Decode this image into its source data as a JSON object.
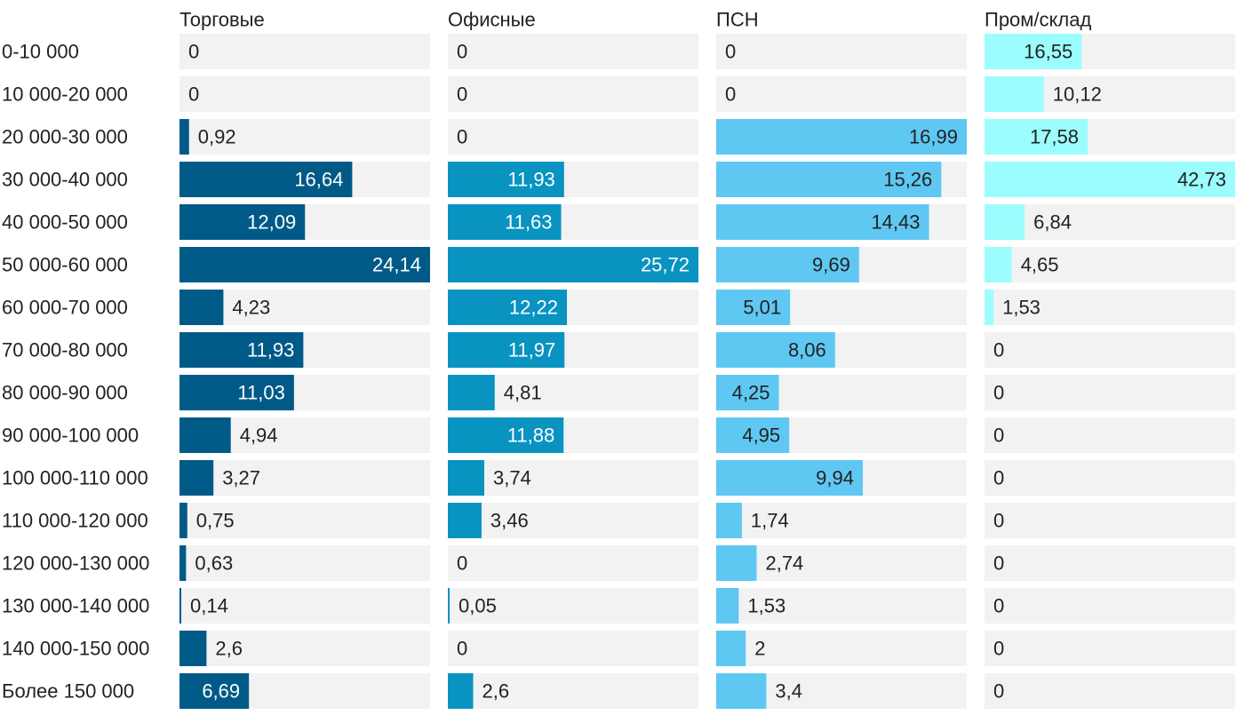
{
  "chart_data": {
    "type": "bar",
    "orientation": "horizontal",
    "layout": "small-multiples",
    "categories": [
      "0-10 000",
      "10 000-20 000",
      "20 000-30 000",
      "30 000-40 000",
      "40 000-50 000",
      "50 000-60 000",
      "60 000-70 000",
      "70 000-80 000",
      "80 000-90 000",
      "90 000-100 000",
      "100 000-110 000",
      "110 000-120 000",
      "120 000-130 000",
      "130 000-140 000",
      "140 000-150 000",
      "Более 150 000"
    ],
    "series": [
      {
        "name": "Торговые",
        "color": "#005a87",
        "values": [
          0,
          0,
          0.92,
          16.64,
          12.09,
          24.14,
          4.23,
          11.93,
          11.03,
          4.94,
          3.27,
          0.75,
          0.63,
          0.14,
          2.6,
          6.69
        ],
        "labels": [
          "0",
          "0",
          "0,92",
          "16,64",
          "12,09",
          "24,14",
          "4,23",
          "11,93",
          "11,03",
          "4,94",
          "3,27",
          "0,75",
          "0,63",
          "0,14",
          "2,6",
          "6,69"
        ]
      },
      {
        "name": "Офисные",
        "color": "#0893c1",
        "values": [
          0,
          0,
          0,
          11.93,
          11.63,
          25.72,
          12.22,
          11.97,
          4.81,
          11.88,
          3.74,
          3.46,
          0,
          0.05,
          0,
          2.6
        ],
        "labels": [
          "0",
          "0",
          "0",
          "11,93",
          "11,63",
          "25,72",
          "12,22",
          "11,97",
          "4,81",
          "11,88",
          "3,74",
          "3,46",
          "0",
          "0,05",
          "0",
          "2,6"
        ]
      },
      {
        "name": "ПСН",
        "color": "#5ec8f3",
        "values": [
          0,
          0,
          16.99,
          15.26,
          14.43,
          9.69,
          5.01,
          8.06,
          4.25,
          4.95,
          9.94,
          1.74,
          2.74,
          1.53,
          2,
          3.4
        ],
        "labels": [
          "0",
          "0",
          "16,99",
          "15,26",
          "14,43",
          "9,69",
          "5,01",
          "8,06",
          "4,25",
          "4,95",
          "9,94",
          "1,74",
          "2,74",
          "1,53",
          "2",
          "3,4"
        ]
      },
      {
        "name": "Пром/склад",
        "color": "#9bfdfd",
        "values": [
          16.55,
          10.12,
          17.58,
          42.73,
          6.84,
          4.65,
          1.53,
          0,
          0,
          0,
          0,
          0,
          0,
          0,
          0,
          0
        ],
        "labels": [
          "16,55",
          "10,12",
          "17,58",
          "42,73",
          "6,84",
          "4,65",
          "1,53",
          "0",
          "0",
          "0",
          "0",
          "0",
          "0",
          "0",
          "0",
          "0"
        ]
      }
    ],
    "track_color": "#f2f2f2",
    "grid": false,
    "legend": "none"
  }
}
